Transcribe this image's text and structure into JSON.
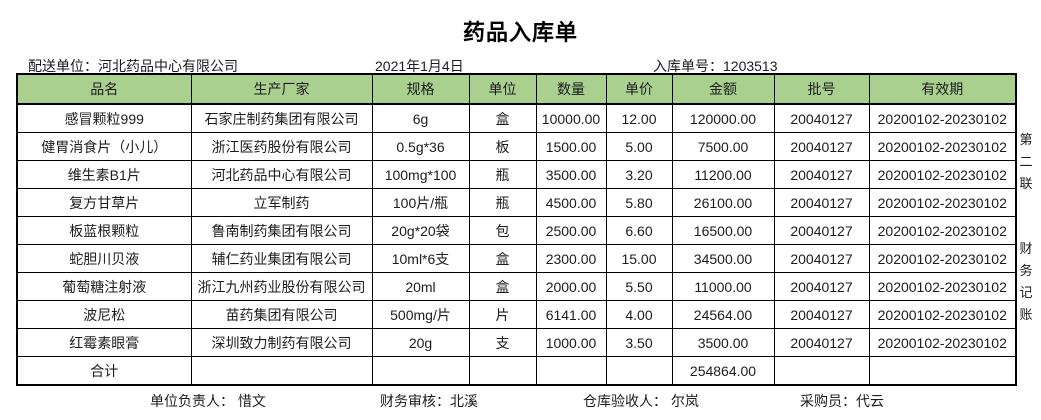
{
  "title": "药品入库单",
  "info": {
    "supplier": "配送单位：河北药品中心有限公司",
    "date": "2021年1月4日",
    "order_no": "入库单号：1203513"
  },
  "table": {
    "columns": [
      "品名",
      "生产厂家",
      "规格",
      "单位",
      "数量",
      "单价",
      "金额",
      "批号",
      "有效期"
    ],
    "rows": [
      [
        "感冒颗粒999",
        "石家庄制药集团有限公司",
        "6g",
        "盒",
        "10000.00",
        "12.00",
        "120000.00",
        "20040127",
        "20200102-20230102"
      ],
      [
        "健胃消食片（小儿）",
        "浙江医药股份有限公司",
        "0.5g*36",
        "板",
        "1500.00",
        "5.00",
        "7500.00",
        "20040127",
        "20200102-20230102"
      ],
      [
        "维生素B1片",
        "河北药品中心有限公司",
        "100mg*100",
        "瓶",
        "3500.00",
        "3.20",
        "11200.00",
        "20040127",
        "20200102-20230102"
      ],
      [
        "复方甘草片",
        "立军制药",
        "100片/瓶",
        "瓶",
        "4500.00",
        "5.80",
        "26100.00",
        "20040127",
        "20200102-20230102"
      ],
      [
        "板蓝根颗粒",
        "鲁南制药集团有限公司",
        "20g*20袋",
        "包",
        "2500.00",
        "6.60",
        "16500.00",
        "20040127",
        "20200102-20230102"
      ],
      [
        "蛇胆川贝液",
        "辅仁药业集团有限公司",
        "10ml*6支",
        "盒",
        "2300.00",
        "15.00",
        "34500.00",
        "20040127",
        "20200102-20230102"
      ],
      [
        "葡萄糖注射液",
        "浙江九州药业股份有限公司",
        "20ml",
        "盒",
        "2000.00",
        "5.50",
        "11000.00",
        "20040127",
        "20200102-20230102"
      ],
      [
        "波尼松",
        "苗药集团有限公司",
        "500mg/片",
        "片",
        "6141.00",
        "4.00",
        "24564.00",
        "20040127",
        "20200102-20230102"
      ],
      [
        "红霉素眼膏",
        "深圳致力制药有限公司",
        "20g",
        "支",
        "1000.00",
        "3.50",
        "3500.00",
        "20040127",
        "20200102-20230102"
      ]
    ],
    "total_row": [
      "合计",
      "",
      "",
      "",
      "",
      "",
      "254864.00",
      "",
      ""
    ]
  },
  "side_note": {
    "copy": "第二联",
    "purpose": "财务记账"
  },
  "footer": {
    "responsible": "单位负责人： 惜文",
    "finance_audit": "财务审核：北溪",
    "warehouse_acceptor": "仓库验收人： 尔岚",
    "purchaser": "采购员：代云"
  },
  "colors": {
    "header_green": "#A9D08E",
    "border": "#000000",
    "text": "#1c1c1c"
  }
}
